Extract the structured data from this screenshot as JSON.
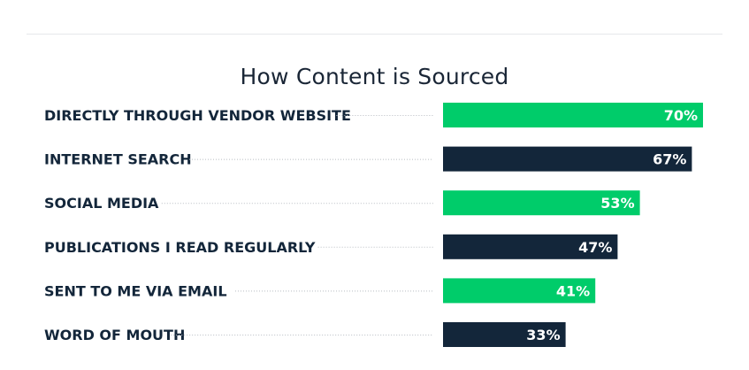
{
  "chart_data": {
    "type": "bar",
    "orientation": "horizontal",
    "title": "How Content is Sourced",
    "categories": [
      "DIRECTLY THROUGH VENDOR WEBSITE",
      "INTERNET SEARCH",
      "SOCIAL MEDIA",
      "PUBLICATIONS I READ REGULARLY",
      "SENT TO ME VIA EMAIL",
      "WORD OF MOUTH"
    ],
    "values": [
      70,
      67,
      53,
      47,
      41,
      33
    ],
    "value_labels": [
      "70%",
      "67%",
      "53%",
      "47%",
      "41%",
      "33%"
    ],
    "xlim": [
      0,
      100
    ],
    "grid": false,
    "legend": "none",
    "colors": {
      "alternate_a": "#00cc6a",
      "alternate_b": "#13263a",
      "label_text": "#13263a",
      "value_text": "#ffffff"
    }
  }
}
